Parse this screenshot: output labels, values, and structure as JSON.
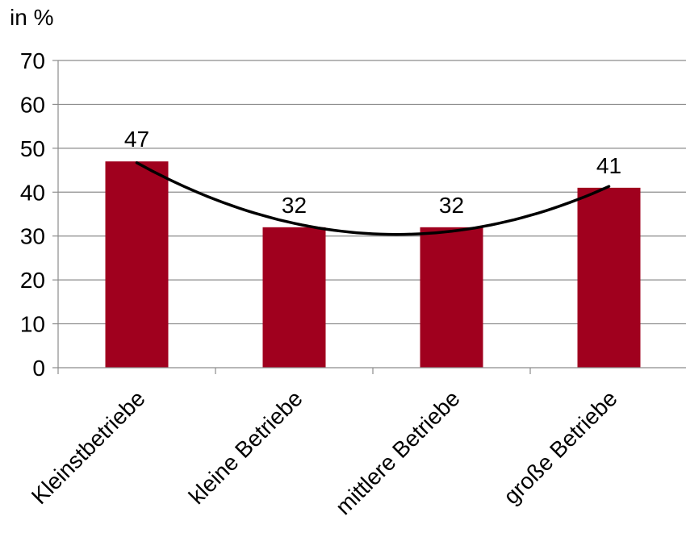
{
  "chart_data": {
    "type": "bar",
    "unit_label": "in %",
    "title": "",
    "xlabel": "",
    "ylabel": "",
    "categories": [
      "Kleinstbetriebe",
      "kleine Betriebe",
      "mittlere Betriebe",
      "große Betriebe"
    ],
    "values": [
      47,
      32,
      32,
      41
    ],
    "data_labels": [
      "47",
      "32",
      "32",
      "41"
    ],
    "ylim": [
      0,
      70
    ],
    "yticks": [
      0,
      10,
      20,
      30,
      40,
      50,
      60,
      70
    ],
    "grid": true,
    "bar_color": "#a0001e",
    "trendline": {
      "type": "polynomial",
      "order": 2,
      "color": "#000000"
    }
  }
}
